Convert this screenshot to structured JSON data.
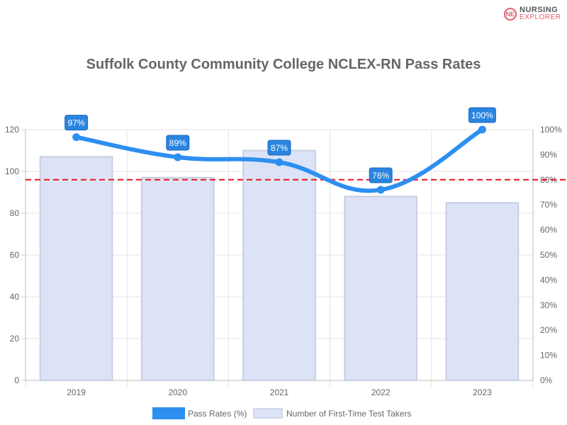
{
  "logo": {
    "line1": "NURSING",
    "line2": "EXPLORER"
  },
  "chart_data": {
    "type": "bar+line",
    "title": "Suffolk County Community College NCLEX-RN Pass Rates",
    "categories": [
      "2019",
      "2020",
      "2021",
      "2022",
      "2023"
    ],
    "series": [
      {
        "name": "Pass Rates (%)",
        "type": "line",
        "axis": "right",
        "values": [
          97,
          89,
          87,
          76,
          100
        ],
        "labels": [
          "97%",
          "89%",
          "87%",
          "76%",
          "100%"
        ],
        "color": "#2d8ff0"
      },
      {
        "name": "Number of First-Time Test Takers",
        "type": "bar",
        "axis": "left",
        "values": [
          107,
          97,
          110,
          88,
          85
        ],
        "color": "#dde3f6",
        "border": "#c8cfe3"
      }
    ],
    "left_axis": {
      "ylim": [
        0,
        120
      ],
      "ticks": [
        "0",
        "20",
        "40",
        "60",
        "80",
        "100",
        "120"
      ]
    },
    "right_axis": {
      "ylim": [
        0,
        100
      ],
      "ticks": [
        "0%",
        "10%",
        "20%",
        "30%",
        "40%",
        "50%",
        "60%",
        "70%",
        "80%",
        "90%",
        "100%"
      ]
    },
    "reference_line": {
      "value": 80,
      "axis": "right",
      "color": "#e8141e",
      "style": "dashed"
    },
    "grid": true,
    "legend": "bottom"
  }
}
